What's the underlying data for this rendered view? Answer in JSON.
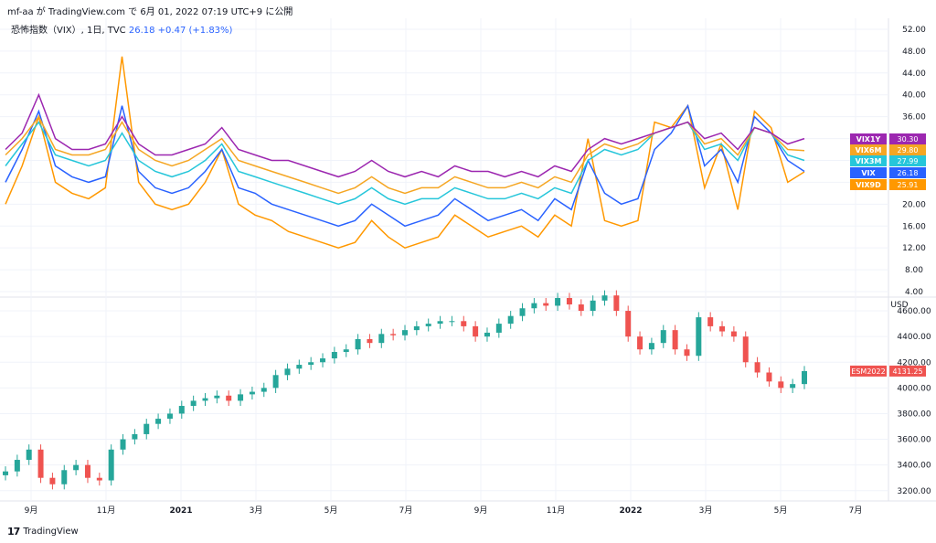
{
  "header": {
    "publisher_line": "mf-aa が TradingView.com で 6月 01, 2022 07:19 UTC+9 に公開"
  },
  "legend": {
    "symbol": "恐怖指数（VIX）, 1日, TVC",
    "value": "26.18",
    "change": "+0.47 (+1.83%)"
  },
  "footer": {
    "brand": "TradingView",
    "logo": "17"
  },
  "colors": {
    "vix": "#2962ff",
    "vix9d": "#ff9800",
    "vix3m": "#26c6da",
    "vix6m": "#f5a623",
    "vix1y": "#9c27b0",
    "esm": "#ef5350",
    "up": "#26a69a",
    "down": "#ef5350"
  },
  "chart_data": [
    {
      "type": "line",
      "title": "恐怖指数（VIX）, 1日, TVC",
      "x_tick_labels": [
        "9月",
        "11月",
        "2021",
        "3月",
        "5月",
        "7月",
        "9月",
        "11月",
        "2022",
        "3月",
        "5月",
        "7月"
      ],
      "y_ticks": [
        "52.00",
        "48.00",
        "44.00",
        "40.00",
        "36.00",
        "32.00",
        "28.00",
        "24.00",
        "20.00",
        "16.00",
        "12.00",
        "8.00",
        "4.00"
      ],
      "ylim": [
        3,
        54
      ],
      "series": [
        {
          "name": "VIX1Y",
          "last": "30.30",
          "color": "#9c27b0",
          "values": [
            30,
            33,
            40,
            32,
            30,
            30,
            31,
            36,
            31,
            29,
            29,
            30,
            31,
            34,
            30,
            29,
            28,
            28,
            27,
            26,
            25,
            26,
            28,
            26,
            25,
            26,
            25,
            27,
            26,
            26,
            25,
            26,
            25,
            27,
            26,
            30,
            32,
            31,
            32,
            33,
            34,
            35,
            32,
            33,
            30,
            34,
            33,
            31,
            32
          ]
        },
        {
          "name": "VIX6M",
          "last": "29.80",
          "color": "#f5a623",
          "values": [
            29,
            32,
            36,
            30,
            29,
            29,
            30,
            35,
            30,
            28,
            27,
            28,
            30,
            32,
            28,
            27,
            26,
            25,
            24,
            23,
            22,
            23,
            25,
            23,
            22,
            23,
            23,
            25,
            24,
            23,
            23,
            24,
            23,
            25,
            24,
            29,
            31,
            30,
            31,
            33,
            34,
            35,
            31,
            32,
            29,
            34,
            33,
            30,
            29.8
          ]
        },
        {
          "name": "VIX3M",
          "last": "27.99",
          "color": "#26c6da",
          "values": [
            27,
            31,
            35,
            29,
            28,
            27,
            28,
            33,
            28,
            26,
            25,
            26,
            28,
            31,
            26,
            25,
            24,
            23,
            22,
            21,
            20,
            21,
            23,
            21,
            20,
            21,
            21,
            23,
            22,
            21,
            21,
            22,
            21,
            23,
            22,
            28,
            30,
            29,
            30,
            33,
            34,
            35,
            30,
            31,
            28,
            34,
            33,
            29,
            28
          ]
        },
        {
          "name": "VIX",
          "last": "26.18",
          "color": "#2962ff",
          "values": [
            24,
            30,
            37,
            27,
            25,
            24,
            25,
            38,
            26,
            23,
            22,
            23,
            26,
            30,
            23,
            22,
            20,
            19,
            18,
            17,
            16,
            17,
            20,
            18,
            16,
            17,
            18,
            21,
            19,
            17,
            18,
            19,
            17,
            21,
            19,
            28,
            22,
            20,
            21,
            30,
            33,
            38,
            27,
            30,
            24,
            36,
            33,
            28,
            26
          ]
        },
        {
          "name": "VIX9D",
          "last": "25.91",
          "color": "#ff9800",
          "values": [
            20,
            27,
            36,
            24,
            22,
            21,
            23,
            47,
            24,
            20,
            19,
            20,
            24,
            30,
            20,
            18,
            17,
            15,
            14,
            13,
            12,
            13,
            17,
            14,
            12,
            13,
            14,
            18,
            16,
            14,
            15,
            16,
            14,
            18,
            16,
            32,
            17,
            16,
            17,
            35,
            34,
            38,
            23,
            31,
            19,
            37,
            34,
            24,
            25.9
          ]
        }
      ]
    },
    {
      "type": "candlestick",
      "title": "ESM2022",
      "currency": "USD",
      "last": "4131.25",
      "y_ticks": [
        "4600.00",
        "4400.00",
        "4200.00",
        "4000.00",
        "3800.00",
        "3600.00",
        "3400.00",
        "3200.00"
      ],
      "ylim": [
        3120,
        4700
      ],
      "close": [
        3350,
        3440,
        3520,
        3300,
        3250,
        3360,
        3400,
        3300,
        3280,
        3520,
        3600,
        3640,
        3720,
        3760,
        3800,
        3860,
        3900,
        3920,
        3940,
        3900,
        3950,
        3970,
        4000,
        4100,
        4150,
        4180,
        4200,
        4230,
        4280,
        4300,
        4380,
        4350,
        4420,
        4410,
        4450,
        4480,
        4500,
        4520,
        4520,
        4480,
        4400,
        4430,
        4500,
        4560,
        4620,
        4660,
        4640,
        4700,
        4650,
        4600,
        4680,
        4720,
        4600,
        4400,
        4300,
        4350,
        4450,
        4300,
        4250,
        4550,
        4480,
        4440,
        4400,
        4200,
        4120,
        4050,
        4000,
        4030,
        4131
      ]
    }
  ]
}
